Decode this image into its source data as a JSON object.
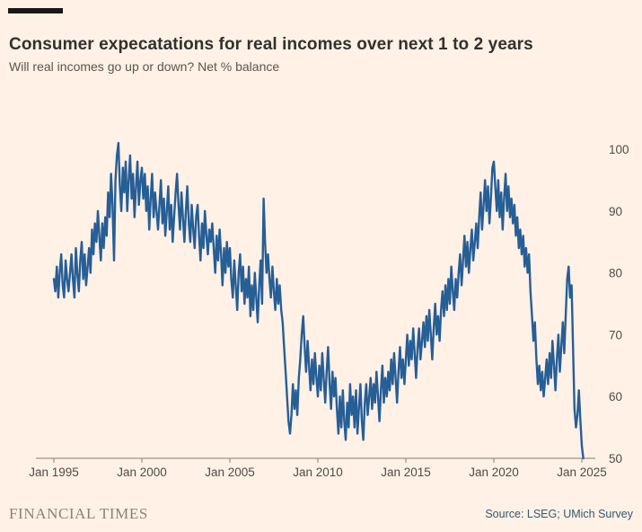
{
  "page": {
    "background_color": "#FFF1E5",
    "accent_bar_color": "#1A1817"
  },
  "header": {
    "title": "Consumer expecatations for real incomes over next 1 to 2 years",
    "subtitle": "Will real incomes go up or down? Net % balance"
  },
  "footer": {
    "brand": "FINANCIAL TIMES",
    "source": "Source: LSEG; UMich Survey",
    "source_color": "#335972"
  },
  "chart_data": {
    "type": "line",
    "title": "Consumer expecatations for real incomes over next 1 to 2 years",
    "subtitle": "Will real incomes go up or down? Net % balance",
    "grid": false,
    "legend": false,
    "line_color": "#265E96",
    "axis_color": "#837D75",
    "tick_text_color": "#4F4B47",
    "xlabel": "",
    "ylabel": "",
    "ylim": [
      50,
      102
    ],
    "y_ticks": [
      50,
      60,
      70,
      80,
      90,
      100
    ],
    "x_ticks": [
      {
        "label": "Jan 1995",
        "month_index": 0
      },
      {
        "label": "Jan 2000",
        "month_index": 60
      },
      {
        "label": "Jan 2005",
        "month_index": 120
      },
      {
        "label": "Jan 2010",
        "month_index": 180
      },
      {
        "label": "Jan 2015",
        "month_index": 240
      },
      {
        "label": "Jan 2020",
        "month_index": 300
      },
      {
        "label": "Jan 2025",
        "month_index": 360
      }
    ],
    "series": [
      {
        "name": "Net % balance",
        "start": "Jan 1995",
        "frequency": "monthly",
        "values": [
          79,
          77,
          81,
          76,
          80,
          83,
          78,
          76,
          82,
          79,
          77,
          80,
          83,
          79,
          76,
          84,
          80,
          77,
          82,
          85,
          79,
          83,
          78,
          81,
          84,
          80,
          87,
          83,
          88,
          85,
          90,
          86,
          82,
          88,
          84,
          89,
          86,
          93,
          89,
          96,
          91,
          82,
          95,
          99,
          101,
          94,
          90,
          97,
          93,
          98,
          90,
          95,
          99,
          92,
          96,
          89,
          94,
          98,
          91,
          95,
          97,
          92,
          96,
          90,
          94,
          87,
          92,
          96,
          89,
          93,
          90,
          87,
          91,
          95,
          88,
          92,
          86,
          90,
          94,
          87,
          91,
          85,
          89,
          93,
          96,
          91,
          87,
          93,
          89,
          85,
          90,
          94,
          88,
          85,
          91,
          87,
          84,
          89,
          91,
          86,
          82,
          88,
          84,
          90,
          86,
          83,
          87,
          85,
          88,
          84,
          80,
          86,
          82,
          87,
          83,
          78,
          84,
          80,
          85,
          81,
          84,
          79,
          76,
          82,
          78,
          74,
          80,
          83,
          77,
          81,
          75,
          79,
          76,
          81,
          73,
          78,
          74,
          80,
          76,
          72,
          78,
          82,
          75,
          92,
          85,
          80,
          83,
          79,
          76,
          81,
          77,
          74,
          79,
          75,
          78,
          74,
          72,
          68,
          64,
          60,
          56,
          54,
          57,
          62,
          58,
          61,
          57,
          63,
          66,
          70,
          73,
          68,
          64,
          69,
          65,
          61,
          66,
          62,
          67,
          63,
          60,
          65,
          61,
          67,
          63,
          59,
          64,
          68,
          62,
          58,
          64,
          60,
          63,
          58,
          54,
          60,
          55,
          61,
          56,
          53,
          59,
          55,
          62,
          57,
          60,
          55,
          61,
          54,
          58,
          62,
          56,
          53,
          59,
          62,
          57,
          60,
          63,
          58,
          62,
          59,
          64,
          60,
          56,
          61,
          65,
          59,
          63,
          60,
          64,
          61,
          66,
          62,
          67,
          63,
          59,
          64,
          68,
          63,
          66,
          62,
          66,
          70,
          65,
          69,
          66,
          71,
          67,
          63,
          68,
          71,
          66,
          69,
          72,
          68,
          73,
          69,
          74,
          70,
          66,
          71,
          75,
          70,
          73,
          69,
          74,
          77,
          73,
          78,
          74,
          79,
          75,
          81,
          77,
          74,
          79,
          76,
          80,
          83,
          78,
          82,
          86,
          81,
          85,
          80,
          84,
          87,
          82,
          85,
          88,
          84,
          89,
          93,
          87,
          91,
          95,
          90,
          94,
          88,
          92,
          97,
          98,
          94,
          90,
          95,
          89,
          93,
          87,
          92,
          96,
          90,
          94,
          89,
          92,
          88,
          91,
          86,
          89,
          84,
          87,
          83,
          86,
          81,
          84,
          80,
          83,
          77,
          73,
          69,
          72,
          66,
          62,
          65,
          61,
          64,
          60,
          63,
          66,
          62,
          67,
          63,
          69,
          65,
          61,
          66,
          70,
          64,
          68,
          72,
          67,
          73,
          79,
          81,
          76,
          78,
          68,
          58,
          55,
          57,
          61,
          56,
          52,
          50
        ]
      }
    ]
  }
}
